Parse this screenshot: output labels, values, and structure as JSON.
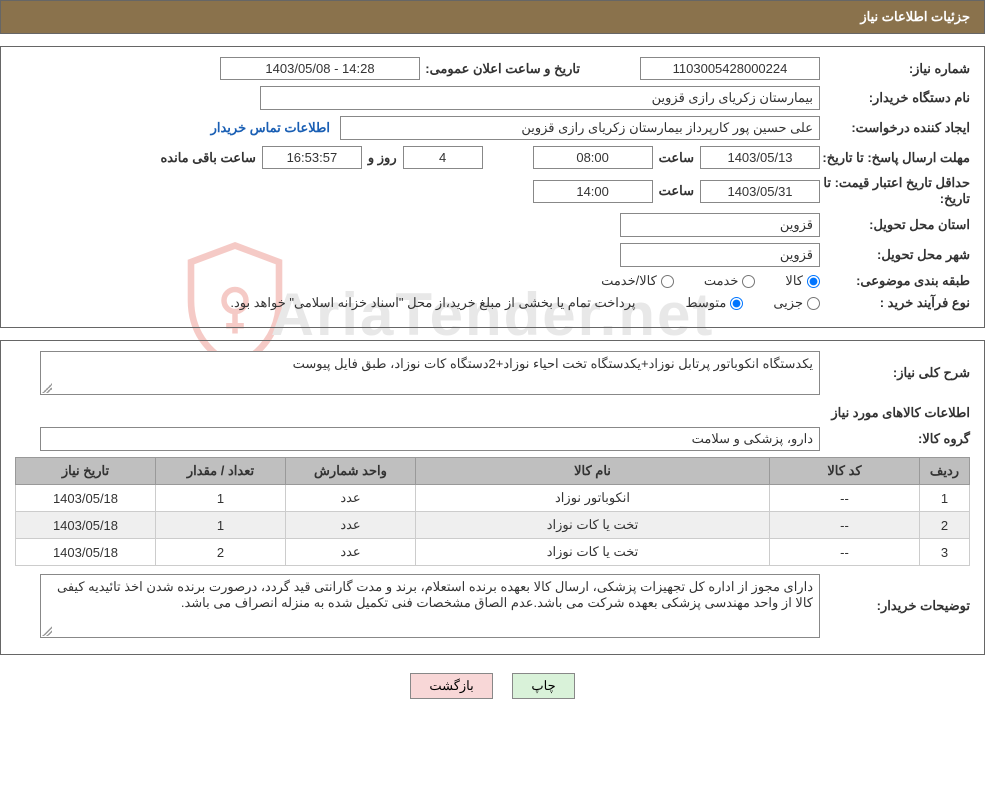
{
  "header": {
    "title": "جزئیات اطلاعات نیاز"
  },
  "watermark_text": "AriaTender.net",
  "fields": {
    "need_number": {
      "label": "شماره نیاز:",
      "value": "1103005428000224"
    },
    "announce_datetime": {
      "label": "تاریخ و ساعت اعلان عمومی:",
      "value": "14:28 - 1403/05/08"
    },
    "buyer_org": {
      "label": "نام دستگاه خریدار:",
      "value": "بیمارستان زکریای رازی قزوین"
    },
    "requester": {
      "label": "ایجاد کننده درخواست:",
      "value": "علی حسین پور کارپرداز بیمارستان زکریای رازی قزوین"
    },
    "buyer_contact_link": "اطلاعات تماس خریدار",
    "deadline": {
      "label": "مهلت ارسال پاسخ: تا تاریخ:",
      "date": "1403/05/13",
      "time_label": "ساعت",
      "time": "08:00",
      "days_label": "روز و",
      "days": "4",
      "countdown": "16:53:57",
      "remaining_label": "ساعت باقی مانده"
    },
    "price_validity": {
      "label": "حداقل تاریخ اعتبار قیمت: تا تاریخ:",
      "date": "1403/05/31",
      "time_label": "ساعت",
      "time": "14:00"
    },
    "delivery_province": {
      "label": "استان محل تحویل:",
      "value": "قزوین"
    },
    "delivery_city": {
      "label": "شهر محل تحویل:",
      "value": "قزوین"
    },
    "category": {
      "label": "طبقه بندی موضوعی:",
      "options": {
        "goods": "کالا",
        "service": "خدمت",
        "goods_service": "کالا/خدمت"
      },
      "selected": "goods"
    },
    "purchase_type": {
      "label": "نوع فرآیند خرید :",
      "options": {
        "partial": "جزیی",
        "medium": "متوسط"
      },
      "selected": "medium",
      "note": "پرداخت تمام یا بخشی از مبلغ خرید،از محل \"اسناد خزانه اسلامی\" خواهد بود."
    }
  },
  "need_desc": {
    "label": "شرح کلی نیاز:",
    "value": "یکدستگاه انکوباتور پرتابل نوزاد+یکدستگاه تخت احیاء نوزاد+2دستگاه کات نوزاد، طبق فایل پیوست"
  },
  "items_section_title": "اطلاعات کالاهای مورد نیاز",
  "group": {
    "label": "گروه کالا:",
    "value": "دارو، پزشکی و سلامت"
  },
  "table": {
    "columns": [
      "ردیف",
      "کد کالا",
      "نام کالا",
      "واحد شمارش",
      "تعداد / مقدار",
      "تاریخ نیاز"
    ],
    "col_widths": [
      "50px",
      "150px",
      "auto",
      "130px",
      "130px",
      "140px"
    ],
    "rows": [
      [
        "1",
        "--",
        "انکوباتور نوزاد",
        "عدد",
        "1",
        "1403/05/18"
      ],
      [
        "2",
        "--",
        "تخت یا کات نوزاد",
        "عدد",
        "1",
        "1403/05/18"
      ],
      [
        "3",
        "--",
        "تخت یا کات نوزاد",
        "عدد",
        "2",
        "1403/05/18"
      ]
    ]
  },
  "buyer_notes": {
    "label": "توضیحات خریدار:",
    "value": "دارای مجوز از اداره کل تجهیزات پزشکی، ارسال کالا بعهده برنده استعلام، برند و مدت گارانتی قید گردد، درصورت برنده شدن اخذ تائیدیه کیفی کالا از واحد مهندسی پزشکی بعهده شرکت می باشد.عدم الصاق مشخصات فنی تکمیل شده به منزله انصراف می باشد."
  },
  "buttons": {
    "print": "چاپ",
    "back": "بازگشت"
  },
  "colors": {
    "header_bg": "#8a724c",
    "header_fg": "#ffffff",
    "border": "#666666",
    "table_header_bg": "#bfbfbf",
    "row_alt_bg": "#efefef",
    "btn_print_bg": "#d9f2d9",
    "btn_back_bg": "#f8d7d7",
    "link_color": "#1a5fb4"
  }
}
